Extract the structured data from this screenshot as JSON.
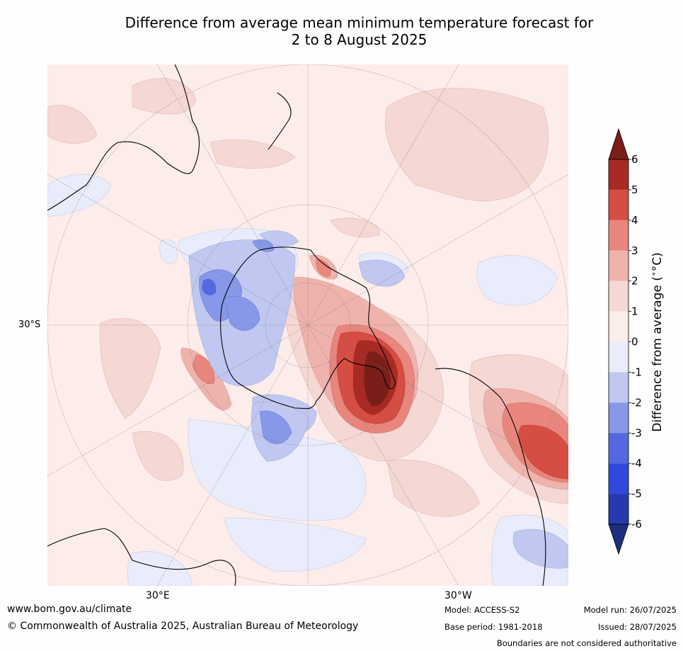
{
  "title_line1": "Difference from average mean minimum temperature forecast for",
  "title_line2": "2 to 8 August 2025",
  "map": {
    "lat_label": "30°S",
    "lon_labels": [
      "30°E",
      "30°W"
    ]
  },
  "colorbar": {
    "label": "Difference from average (°C)",
    "label_prefix": "Difference from average (",
    "label_unit": "°C",
    "label_suffix": ")",
    "ticks": [
      "6",
      "5",
      "4",
      "3",
      "2",
      "1",
      "0",
      "-1",
      "-2",
      "-3",
      "-4",
      "-5",
      "-6"
    ],
    "colors": [
      "#a72a25",
      "#d64d43",
      "#e8867d",
      "#efb3ad",
      "#f5d7d4",
      "#fcecea",
      "#e9ecfa",
      "#c0c8f1",
      "#8798e8",
      "#5468df",
      "#3049dc",
      "#243aae"
    ],
    "over_color": "#7a1e1a",
    "under_color": "#1e2e7e"
  },
  "footer": {
    "url": "www.bom.gov.au/climate",
    "copyright": "© Commonwealth of Australia 2025, Australian Bureau of Meteorology",
    "model": "Model: ACCESS-S2",
    "base_period": "Base period: 1981-2018",
    "model_run": "Model run: 26/07/2025",
    "issued": "Issued: 28/07/2025",
    "disclaimer": "Boundaries are not considered authoritative"
  }
}
